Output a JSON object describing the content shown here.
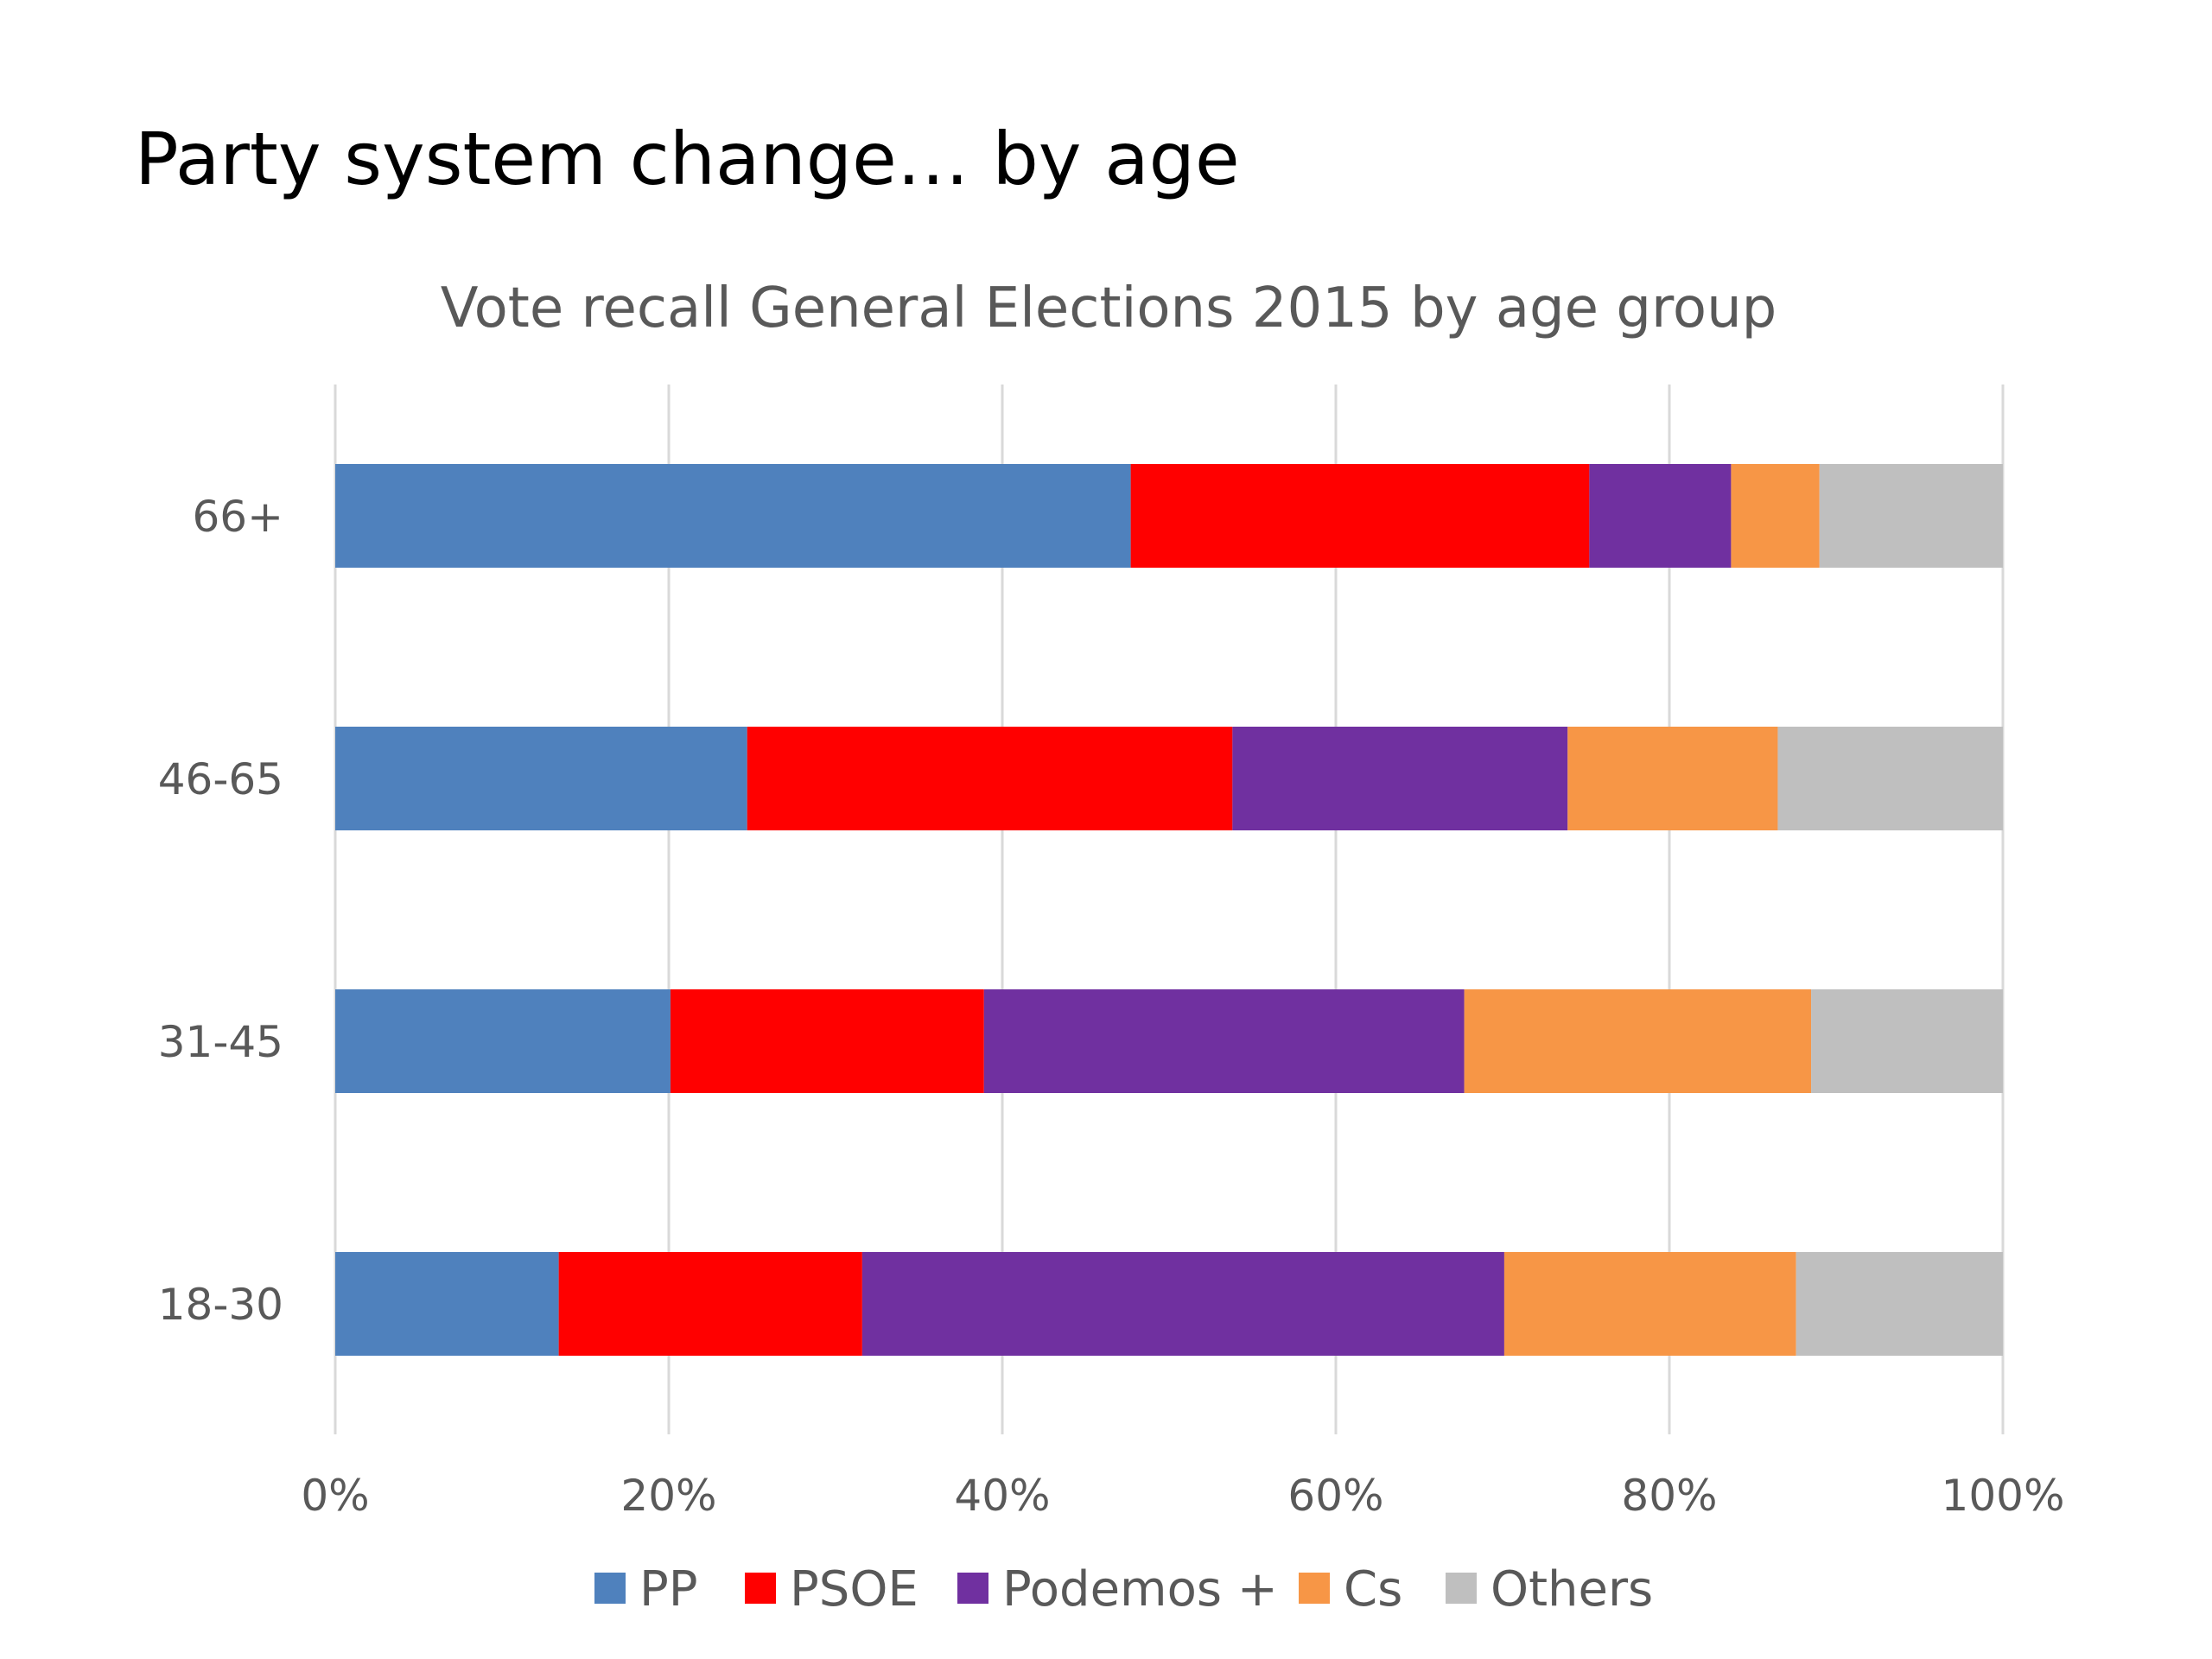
{
  "slide": {
    "title": "Party system change… by age"
  },
  "chart_data": {
    "type": "bar",
    "orientation": "horizontal",
    "stacked": "percent",
    "title": "Vote recall General Elections 2015 by age group",
    "xlabel": "",
    "ylabel": "",
    "xlim": [
      0,
      100
    ],
    "x_ticks": [
      "0%",
      "20%",
      "40%",
      "60%",
      "80%",
      "100%"
    ],
    "categories": [
      "66+",
      "46-65",
      "31-45",
      "18-30"
    ],
    "grid": true,
    "legend_position": "bottom",
    "series": [
      {
        "name": "PP",
        "color": "#4F81BD",
        "values": [
          47.7,
          24.7,
          20.1,
          13.4
        ]
      },
      {
        "name": "PSOE",
        "color": "#FF0000",
        "values": [
          27.5,
          29.1,
          18.8,
          18.2
        ]
      },
      {
        "name": "Podemos +",
        "color": "#7030A0",
        "values": [
          8.5,
          20.1,
          28.8,
          38.5
        ]
      },
      {
        "name": "Cs",
        "color": "#F79646",
        "values": [
          5.3,
          12.6,
          20.8,
          17.5
        ]
      },
      {
        "name": "Others",
        "color": "#BFBFBF",
        "values": [
          11.0,
          13.5,
          11.5,
          12.4
        ]
      }
    ]
  }
}
